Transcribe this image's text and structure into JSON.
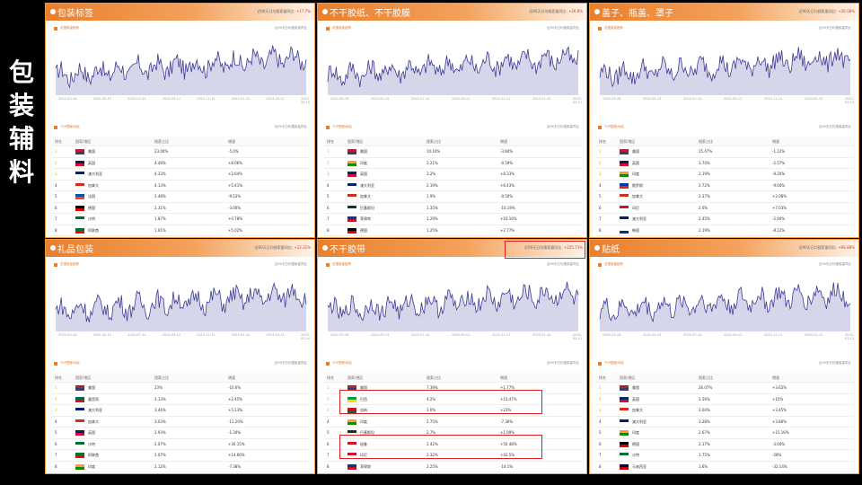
{
  "side_title": "包装辅料",
  "panels": [
    {
      "title": "包装标签",
      "meta_text": "近90天日均搜索量同比:",
      "meta_value": "+17.7%",
      "sub1": "总搜索量趋势",
      "note1": "近90天日均搜索量同比",
      "sub2": "TOP国家/地区",
      "note2": "近90天日均搜索量同比",
      "x_ticks": [
        "2022-03-16",
        "2022-05-15",
        "2022-07-14",
        "2022-09-12",
        "2022-11-11",
        "2023-01-10",
        "2023-03-11",
        "2023-05-10"
      ],
      "table_head": [
        "排名",
        "国家/地区",
        "搜索占比",
        "增速"
      ],
      "rows": [
        [
          "1",
          "美国",
          "23.00%",
          "-5.0%"
        ],
        [
          "2",
          "英国",
          "4.48%",
          "+8.06%"
        ],
        [
          "3",
          "澳大利亚",
          "4.33%",
          "+2.64%"
        ],
        [
          "4",
          "加拿大",
          "4.13%",
          "+5.41%"
        ],
        [
          "5",
          "法国",
          "2.48%",
          "-9.53%"
        ],
        [
          "6",
          "德国",
          "2.31%",
          "-3.00%"
        ],
        [
          "7",
          "沙特",
          "1.87%",
          "+0.78%"
        ],
        [
          "8",
          "阿联酋",
          "1.61%",
          "+5.02%"
        ]
      ]
    },
    {
      "title": "不干胶纸、不干胶膜",
      "meta_text": "近90天日均搜索量同比:",
      "meta_value": "+26.8%",
      "sub1": "总搜索量趋势",
      "note1": "近90天日均搜索量同比",
      "sub2": "TOP国家/地区",
      "note2": "近90天日均搜索量同比",
      "x_ticks": [
        "2022-03-16",
        "2022-05-15",
        "2022-07-14",
        "2022-09-12",
        "2022-11-11",
        "2023-01-10",
        "2023-03-11"
      ],
      "table_head": [
        "排名",
        "国家/地区",
        "搜索占比",
        "增速"
      ],
      "rows": [
        [
          "1",
          "美国",
          "10.10%",
          "-3.84%"
        ],
        [
          "2",
          "印度",
          "3.21%",
          "-0.59%"
        ],
        [
          "3",
          "英国",
          "3.2%",
          "+8.33%"
        ],
        [
          "4",
          "澳大利亚",
          "2.19%",
          "+6.43%"
        ],
        [
          "5",
          "加拿大",
          "1.9%",
          "-0.50%"
        ],
        [
          "6",
          "巴基斯坦",
          "1.35%",
          "-10.19%"
        ],
        [
          "7",
          "菲律宾",
          "1.29%",
          "+10.16%"
        ],
        [
          "8",
          "德国",
          "1.25%",
          "+2.77%"
        ]
      ]
    },
    {
      "title": "盖子、瓶盖、罩子",
      "meta_text": "近90天日均搜索量同比:",
      "meta_value": "+26.08%",
      "sub1": "总搜索量趋势",
      "note1": "近90天日均搜索量同比",
      "sub2": "TOP国家/地区",
      "note2": "近90天日均搜索量同比",
      "x_ticks": [
        "2022-03-16",
        "2022-05-15",
        "2022-07-14",
        "2022-09-12",
        "2022-11-11",
        "2023-01-10",
        "2023-03-11"
      ],
      "table_head": [
        "排名",
        "国家/地区",
        "搜索占比",
        "增速"
      ],
      "rows": [
        [
          "1",
          "美国",
          "15.47%",
          "-1.12%"
        ],
        [
          "2",
          "英国",
          "3.74%",
          "-2.57%"
        ],
        [
          "3",
          "印度",
          "3.19%",
          "-9.20%"
        ],
        [
          "4",
          "俄罗斯",
          "2.72%",
          "-9.04%"
        ],
        [
          "5",
          "加拿大",
          "2.37%",
          "+2.08%"
        ],
        [
          "6",
          "印尼",
          "2.0%",
          "+7.03%"
        ],
        [
          "7",
          "澳大利亚",
          "2.45%",
          "-2.94%"
        ],
        [
          "8",
          "韩国",
          "2.19%",
          "-8.12%"
        ]
      ]
    },
    {
      "title": "礼品包装",
      "meta_text": "近90天日均搜索量同比:",
      "meta_value": "+22.31%",
      "sub1": "总搜索量趋势",
      "note1": "近90天日均搜索量同比",
      "sub2": "TOP国家/地区",
      "note2": "近90天日均搜索量同比",
      "x_ticks": [
        "2022-03-16",
        "2022-05-15",
        "2022-07-14",
        "2022-09-12",
        "2022-11-11",
        "2023-01-10",
        "2023-03-11",
        "2023-05-10"
      ],
      "table_head": [
        "排名",
        "国家/地区",
        "搜索占比",
        "增速"
      ],
      "rows": [
        [
          "1",
          "美国",
          "23%",
          "-10.0%"
        ],
        [
          "2",
          "墨西哥",
          "3.13%",
          "+2.45%"
        ],
        [
          "3",
          "澳大利亚",
          "3.44%",
          "+5.13%"
        ],
        [
          "4",
          "加拿大",
          "3.03%",
          "-11.20%"
        ],
        [
          "5",
          "英国",
          "2.93%",
          "-1.34%"
        ],
        [
          "6",
          "沙特",
          "2.07%",
          "+30.15%"
        ],
        [
          "7",
          "阿联酋",
          "2.07%",
          "+14.66%"
        ],
        [
          "8",
          "印度",
          "2.12%",
          "-7.38%"
        ]
      ]
    },
    {
      "title": "不干胶带",
      "meta_text": "近90天日均搜索量同比:",
      "meta_value": "+225.73%",
      "sub1": "总搜索量趋势",
      "note1": "近90天日均搜索量同比",
      "sub2": "TOP国家/地区",
      "note2": "近90天日均搜索量同比",
      "x_ticks": [
        "2022-03-16",
        "2022-05-15",
        "2022-07-14",
        "2022-09-12",
        "2022-11-11",
        "2023-01-10",
        "2023-03-11"
      ],
      "table_head": [
        "排名",
        "国家/地区",
        "搜索占比",
        "增速"
      ],
      "rows": [
        [
          "1",
          "美国",
          "7.39%",
          "+1.77%"
        ],
        [
          "2",
          "巴西",
          "4.2%",
          "+15.47%"
        ],
        [
          "3",
          "加纳",
          "3.6%",
          "+23%"
        ],
        [
          "4",
          "印度",
          "2.75%",
          "-7.36%"
        ],
        [
          "5",
          "巴基斯坦",
          "2.7%",
          "+1.99%"
        ],
        [
          "6",
          "秘鲁",
          "2.42%",
          "+50.48%"
        ],
        [
          "7",
          "印尼",
          "2.32%",
          "+42.5%"
        ],
        [
          "8",
          "菲律宾",
          "2.25%",
          "-14.1%"
        ]
      ]
    },
    {
      "title": "贴纸",
      "meta_text": "近90天日均搜索量同比:",
      "meta_value": "+66.88%",
      "sub1": "总搜索量趋势",
      "note1": "近90天日均搜索量同比",
      "sub2": "TOP国家/地区",
      "note2": "近90天日均搜索量同比",
      "x_ticks": [
        "2022-03-16",
        "2022-05-15",
        "2022-07-14",
        "2022-09-12",
        "2022-11-11",
        "2023-01-10",
        "2023-03-11"
      ],
      "table_head": [
        "排名",
        "国家/地区",
        "搜索占比",
        "增速"
      ],
      "rows": [
        [
          "1",
          "美国",
          "26.07%",
          "+3.62%"
        ],
        [
          "2",
          "英国",
          "3.56%",
          "+15%"
        ],
        [
          "3",
          "加拿大",
          "3.04%",
          "+3.45%"
        ],
        [
          "4",
          "澳大利亚",
          "3.28%",
          "+3.80%"
        ],
        [
          "5",
          "印度",
          "2.67%",
          "+15.16%"
        ],
        [
          "6",
          "德国",
          "2.17%",
          "-3.04%"
        ],
        [
          "7",
          "沙特",
          "1.75%",
          "-28%"
        ],
        [
          "8",
          "马来西亚",
          "1.6%",
          "-32.14%"
        ]
      ]
    }
  ],
  "colors": {
    "accent": "#e97f2c",
    "line": "#3c3c96",
    "area": "#d6d6ea",
    "highlight": "#e02020"
  }
}
